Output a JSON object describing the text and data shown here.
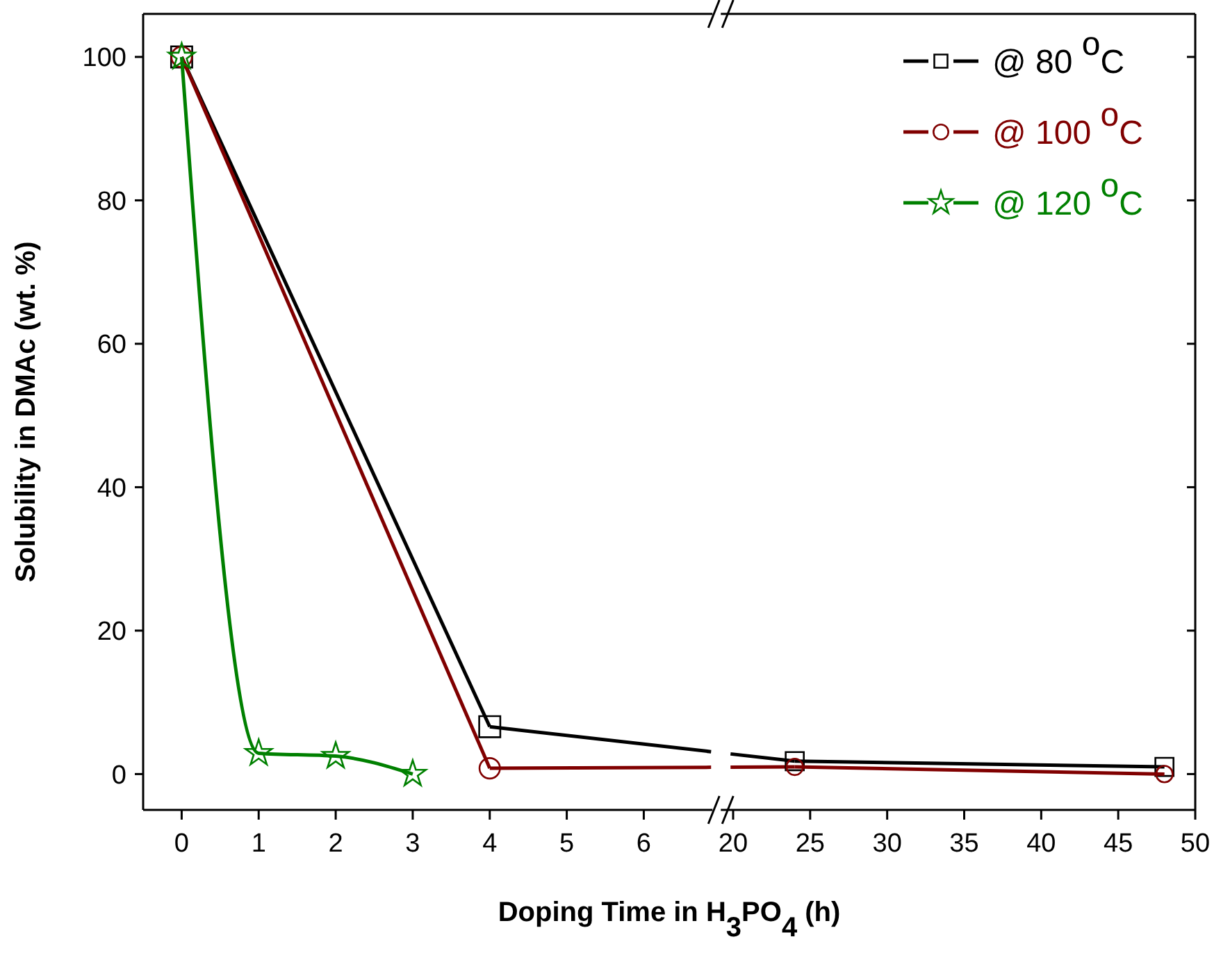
{
  "chart_data": [
    {
      "type": "line",
      "xlabel": "Doping Time in H$_{3}$PO$_{4}$ (h)",
      "ylabel": "Solubility in DMAc (wt. %)",
      "series": [
        {
          "name": "@ 80 $^{o}$C",
          "color": "#000000",
          "marker": "square",
          "x": [
            0,
            4
          ],
          "values": [
            100,
            6.6
          ]
        },
        {
          "name": "@ 100 $^{o}$C",
          "color": "#800000",
          "marker": "circle",
          "x": [
            0,
            4
          ],
          "values": [
            100,
            0.8
          ]
        },
        {
          "name": "@ 120 $^{o}$C",
          "color": "#008000",
          "marker": "star",
          "x": [
            0,
            1,
            2,
            3
          ],
          "values": [
            100,
            2.9,
            2.5,
            0
          ]
        }
      ],
      "xlim": [
        -0.5,
        7
      ],
      "xticks": [
        0,
        1,
        2,
        3,
        4,
        5,
        6
      ],
      "ylim": [
        -5,
        106
      ],
      "yticks": [
        0,
        20,
        40,
        60,
        80,
        100
      ],
      "legend": "top right",
      "line_style": "solid",
      "grid": false
    },
    {
      "type": "line",
      "series": [
        {
          "color": "#000000",
          "marker": "square",
          "x": [
            24,
            48
          ],
          "values": [
            1.8,
            1.0
          ]
        },
        {
          "color": "#800000",
          "marker": "circle",
          "x": [
            24,
            48
          ],
          "values": [
            1.0,
            0
          ]
        }
      ],
      "xlim": [
        19.2,
        50
      ],
      "xticks": [
        20,
        25,
        30,
        35,
        40,
        45,
        50
      ],
      "ylim": [
        -5,
        106
      ],
      "yticks": [
        0,
        20,
        40,
        60,
        80,
        100
      ],
      "tick_labels": "x",
      "line_style": "solid",
      "grid": false
    }
  ]
}
